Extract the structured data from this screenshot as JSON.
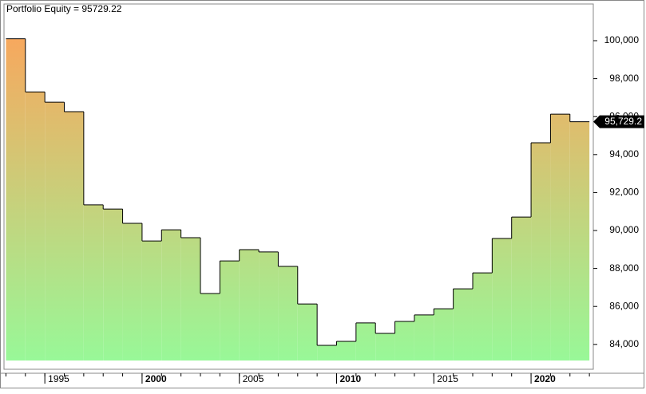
{
  "chart_data": {
    "type": "step-area",
    "title": "Portfolio Equity = 95729.22",
    "x": [
      1993,
      1994,
      1995,
      1996,
      1997,
      1998,
      1999,
      2000,
      2001,
      2002,
      2003,
      2004,
      2005,
      2006,
      2007,
      2008,
      2009,
      2010,
      2011,
      2012,
      2013,
      2014,
      2015,
      2016,
      2017,
      2018,
      2019,
      2020,
      2021,
      2022
    ],
    "values": [
      100100,
      97300,
      96760,
      96260,
      91350,
      91130,
      90380,
      89450,
      90040,
      89620,
      86680,
      88400,
      88990,
      88870,
      88110,
      86130,
      83950,
      84160,
      85130,
      84580,
      85210,
      85550,
      85880,
      86930,
      87770,
      89580,
      90710,
      94620,
      96130,
      95729.22
    ],
    "value_labels": [
      null,
      null,
      null,
      null,
      null,
      null,
      null,
      null,
      null,
      null,
      null,
      null,
      null,
      null,
      null,
      null,
      null,
      null,
      null,
      null,
      null,
      null,
      null,
      null,
      null,
      null,
      null,
      null,
      null,
      "95,729.2"
    ],
    "color_top": "#f7a85e",
    "color_bottom": "#98f898",
    "line_color": "#000000",
    "xlim": [
      1992.9,
      2023.2
    ],
    "xticks": [
      1995,
      2000,
      2005,
      2010,
      2015,
      2020
    ],
    "ylim": [
      82690,
      101933
    ],
    "yticks": [
      {
        "value": 84000,
        "label": "84,000"
      },
      {
        "value": 86000,
        "label": "86,000"
      },
      {
        "value": 88000,
        "label": "88,000"
      },
      {
        "value": 90000,
        "label": "90,000"
      },
      {
        "value": 92000,
        "label": "92,000"
      },
      {
        "value": 94000,
        "label": "94,000"
      },
      {
        "value": 96000,
        "label": "96,000"
      },
      {
        "value": 98000,
        "label": "98,000"
      },
      {
        "value": 100000,
        "label": "100,000"
      }
    ],
    "y_axis_side": "right"
  }
}
